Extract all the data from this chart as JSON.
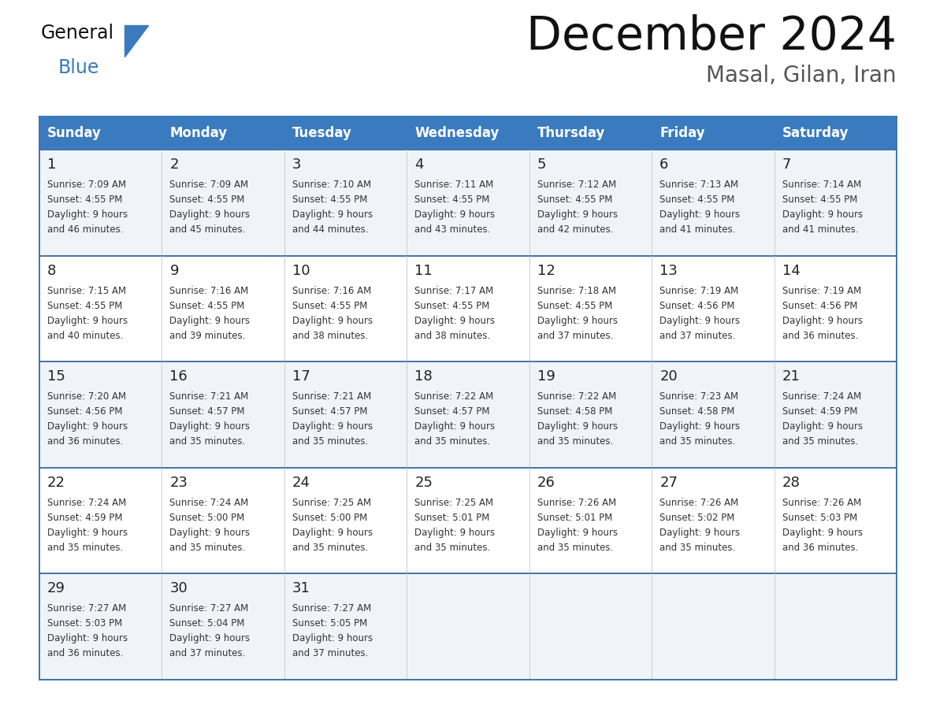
{
  "title": "December 2024",
  "subtitle": "Masal, Gilan, Iran",
  "header_bg": "#3a7bbf",
  "header_text_color": "#ffffff",
  "days_of_week": [
    "Sunday",
    "Monday",
    "Tuesday",
    "Wednesday",
    "Thursday",
    "Friday",
    "Saturday"
  ],
  "row_bg_odd": "#f0f4f8",
  "row_bg_even": "#ffffff",
  "cell_border_color": "#4472a8",
  "day_num_color": "#222222",
  "info_text_color": "#333333",
  "logo_general_color": "#111111",
  "logo_blue_color": "#3a7bbf",
  "logo_triangle_color": "#3a7bbf",
  "calendar_data": [
    [
      {
        "day": 1,
        "sunrise": "7:09 AM",
        "sunset": "4:55 PM",
        "daylight": "9 hours and 46 minutes."
      },
      {
        "day": 2,
        "sunrise": "7:09 AM",
        "sunset": "4:55 PM",
        "daylight": "9 hours and 45 minutes."
      },
      {
        "day": 3,
        "sunrise": "7:10 AM",
        "sunset": "4:55 PM",
        "daylight": "9 hours and 44 minutes."
      },
      {
        "day": 4,
        "sunrise": "7:11 AM",
        "sunset": "4:55 PM",
        "daylight": "9 hours and 43 minutes."
      },
      {
        "day": 5,
        "sunrise": "7:12 AM",
        "sunset": "4:55 PM",
        "daylight": "9 hours and 42 minutes."
      },
      {
        "day": 6,
        "sunrise": "7:13 AM",
        "sunset": "4:55 PM",
        "daylight": "9 hours and 41 minutes."
      },
      {
        "day": 7,
        "sunrise": "7:14 AM",
        "sunset": "4:55 PM",
        "daylight": "9 hours and 41 minutes."
      }
    ],
    [
      {
        "day": 8,
        "sunrise": "7:15 AM",
        "sunset": "4:55 PM",
        "daylight": "9 hours and 40 minutes."
      },
      {
        "day": 9,
        "sunrise": "7:16 AM",
        "sunset": "4:55 PM",
        "daylight": "9 hours and 39 minutes."
      },
      {
        "day": 10,
        "sunrise": "7:16 AM",
        "sunset": "4:55 PM",
        "daylight": "9 hours and 38 minutes."
      },
      {
        "day": 11,
        "sunrise": "7:17 AM",
        "sunset": "4:55 PM",
        "daylight": "9 hours and 38 minutes."
      },
      {
        "day": 12,
        "sunrise": "7:18 AM",
        "sunset": "4:55 PM",
        "daylight": "9 hours and 37 minutes."
      },
      {
        "day": 13,
        "sunrise": "7:19 AM",
        "sunset": "4:56 PM",
        "daylight": "9 hours and 37 minutes."
      },
      {
        "day": 14,
        "sunrise": "7:19 AM",
        "sunset": "4:56 PM",
        "daylight": "9 hours and 36 minutes."
      }
    ],
    [
      {
        "day": 15,
        "sunrise": "7:20 AM",
        "sunset": "4:56 PM",
        "daylight": "9 hours and 36 minutes."
      },
      {
        "day": 16,
        "sunrise": "7:21 AM",
        "sunset": "4:57 PM",
        "daylight": "9 hours and 35 minutes."
      },
      {
        "day": 17,
        "sunrise": "7:21 AM",
        "sunset": "4:57 PM",
        "daylight": "9 hours and 35 minutes."
      },
      {
        "day": 18,
        "sunrise": "7:22 AM",
        "sunset": "4:57 PM",
        "daylight": "9 hours and 35 minutes."
      },
      {
        "day": 19,
        "sunrise": "7:22 AM",
        "sunset": "4:58 PM",
        "daylight": "9 hours and 35 minutes."
      },
      {
        "day": 20,
        "sunrise": "7:23 AM",
        "sunset": "4:58 PM",
        "daylight": "9 hours and 35 minutes."
      },
      {
        "day": 21,
        "sunrise": "7:24 AM",
        "sunset": "4:59 PM",
        "daylight": "9 hours and 35 minutes."
      }
    ],
    [
      {
        "day": 22,
        "sunrise": "7:24 AM",
        "sunset": "4:59 PM",
        "daylight": "9 hours and 35 minutes."
      },
      {
        "day": 23,
        "sunrise": "7:24 AM",
        "sunset": "5:00 PM",
        "daylight": "9 hours and 35 minutes."
      },
      {
        "day": 24,
        "sunrise": "7:25 AM",
        "sunset": "5:00 PM",
        "daylight": "9 hours and 35 minutes."
      },
      {
        "day": 25,
        "sunrise": "7:25 AM",
        "sunset": "5:01 PM",
        "daylight": "9 hours and 35 minutes."
      },
      {
        "day": 26,
        "sunrise": "7:26 AM",
        "sunset": "5:01 PM",
        "daylight": "9 hours and 35 minutes."
      },
      {
        "day": 27,
        "sunrise": "7:26 AM",
        "sunset": "5:02 PM",
        "daylight": "9 hours and 35 minutes."
      },
      {
        "day": 28,
        "sunrise": "7:26 AM",
        "sunset": "5:03 PM",
        "daylight": "9 hours and 36 minutes."
      }
    ],
    [
      {
        "day": 29,
        "sunrise": "7:27 AM",
        "sunset": "5:03 PM",
        "daylight": "9 hours and 36 minutes."
      },
      {
        "day": 30,
        "sunrise": "7:27 AM",
        "sunset": "5:04 PM",
        "daylight": "9 hours and 37 minutes."
      },
      {
        "day": 31,
        "sunrise": "7:27 AM",
        "sunset": "5:05 PM",
        "daylight": "9 hours and 37 minutes."
      },
      null,
      null,
      null,
      null
    ]
  ]
}
